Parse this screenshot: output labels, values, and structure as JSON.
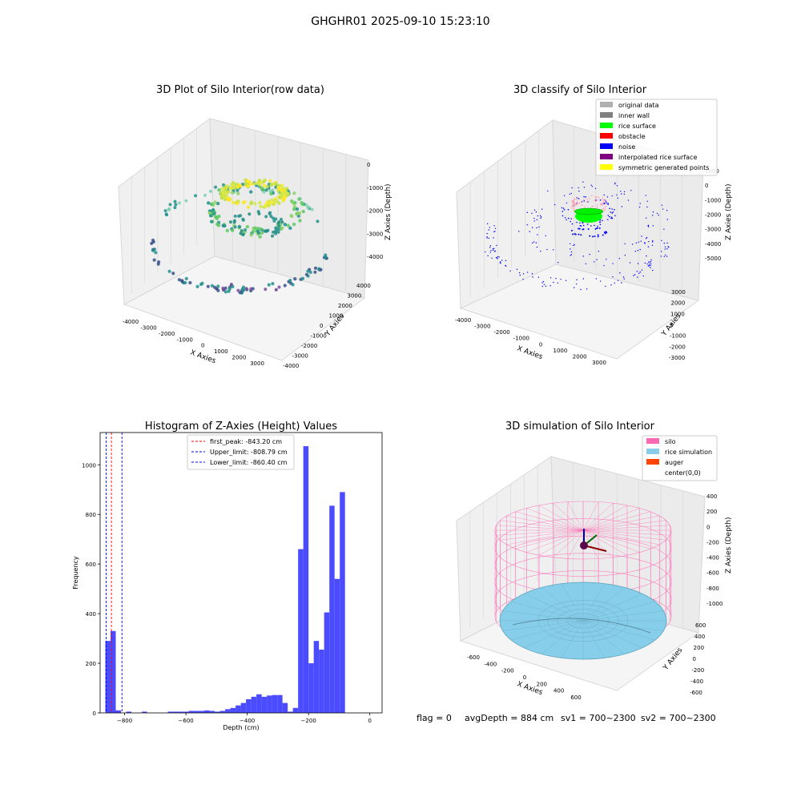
{
  "suptitle": "GHGHR01 2025-09-10 15:23:10",
  "footer": {
    "flag": "flag = 0",
    "avg_depth": "avgDepth = 884 cm",
    "sv1": "sv1 = 700~2300",
    "sv2": "sv2 = 700~2300"
  },
  "chart_data": [
    {
      "type": "scatter",
      "projection": "3d",
      "title": "3D Plot of Silo Interior(row data)",
      "xlabel": "X Axies",
      "ylabel": "Y Axies",
      "zlabel": "Z Axies (Depth)",
      "x_ticks": [
        "-4000",
        "-3000",
        "-2000",
        "-1000",
        "0",
        "1000",
        "2000",
        "3000"
      ],
      "y_ticks": [
        "4000",
        "3000",
        "2000",
        "1000",
        "0",
        "-1000",
        "-2000",
        "-3000",
        "-4000"
      ],
      "z_ticks": [
        "0",
        "-1000",
        "-2000",
        "-3000",
        "-4000"
      ],
      "colormap": [
        "#440154",
        "#3b528b",
        "#21918c",
        "#5ec962",
        "#fde725"
      ],
      "description_values": {
        "top_cluster_z": -850,
        "mid_ring_z": -2200,
        "outer_ring_z": -3600
      }
    },
    {
      "type": "scatter",
      "projection": "3d",
      "title": "3D classify of Silo Interior",
      "xlabel": "X Axies",
      "ylabel": "Y Axies",
      "zlabel": "Z Axies (Depth)",
      "x_ticks": [
        "-4000",
        "-3000",
        "-2000",
        "-1000",
        "0",
        "1000",
        "2000",
        "3000"
      ],
      "y_ticks": [
        "3000",
        "2000",
        "1000",
        "0",
        "-1000",
        "-2000",
        "-3000"
      ],
      "z_ticks": [
        "1000",
        "0",
        "-1000",
        "-2000",
        "-3000",
        "-4000",
        "-5000"
      ],
      "legend": [
        {
          "label": "original data",
          "color": "#b0b0b0"
        },
        {
          "label": "inner wall",
          "color": "#808080"
        },
        {
          "label": "rice surface",
          "color": "#00ff00"
        },
        {
          "label": "obstacle",
          "color": "#ff0000"
        },
        {
          "label": "noise",
          "color": "#0000ff"
        },
        {
          "label": "interpolated rice surface",
          "color": "#800080"
        },
        {
          "label": "symmetric generated points",
          "color": "#ffff00"
        }
      ],
      "legend_position": "top-right"
    },
    {
      "type": "bar",
      "title": "Histogram of Z-Axies (Height) Values",
      "xlabel": "Depth (cm)",
      "ylabel": "Frequency",
      "xlim": [
        -880,
        40
      ],
      "ylim": [
        0,
        1130
      ],
      "x_ticks": [
        -800,
        -600,
        -400,
        -200,
        0
      ],
      "y_ticks": [
        0,
        200,
        400,
        600,
        800,
        1000
      ],
      "bar_color": "#4b4bff",
      "bin_start": -863,
      "bin_width": 17,
      "values": [
        290,
        330,
        10,
        0,
        5,
        0,
        0,
        5,
        0,
        0,
        0,
        0,
        5,
        5,
        5,
        5,
        8,
        8,
        8,
        10,
        8,
        5,
        8,
        15,
        20,
        30,
        40,
        55,
        65,
        75,
        65,
        70,
        72,
        72,
        40,
        5,
        20,
        660,
        1075,
        200,
        290,
        255,
        405,
        835,
        540,
        890
      ],
      "vlines": [
        {
          "x": -843.2,
          "label": "first_peak: -843.20 cm",
          "color": "#ff0000"
        },
        {
          "x": -808.79,
          "label": "Upper_limit: -808.79 cm",
          "color": "#0000ff"
        },
        {
          "x": -860.4,
          "label": "Lower_limit: -860.40 cm",
          "color": "#0000ff"
        }
      ],
      "legend_position": "top-center"
    },
    {
      "type": "surface",
      "projection": "3d",
      "title": "3D simulation of Silo Interior",
      "xlabel": "X Axies",
      "ylabel": "Y Axies",
      "zlabel": "Z Axies (Depth)",
      "x_ticks": [
        "-600",
        "-400",
        "-200",
        "0",
        "200",
        "400",
        "600"
      ],
      "y_ticks": [
        "600",
        "400",
        "200",
        "0",
        "-200",
        "-400",
        "-600"
      ],
      "z_ticks": [
        "400",
        "200",
        "0",
        "-200",
        "-400",
        "-600",
        "-800",
        "-1000"
      ],
      "legend": [
        {
          "label": "silo",
          "color": "#ff69b4"
        },
        {
          "label": "rice simulation",
          "color": "#87ceeb"
        },
        {
          "label": "auger",
          "color": "#ff4500"
        },
        {
          "label": "center(0,0)",
          "color": "#ffffff"
        }
      ],
      "legend_position": "top-right"
    }
  ]
}
